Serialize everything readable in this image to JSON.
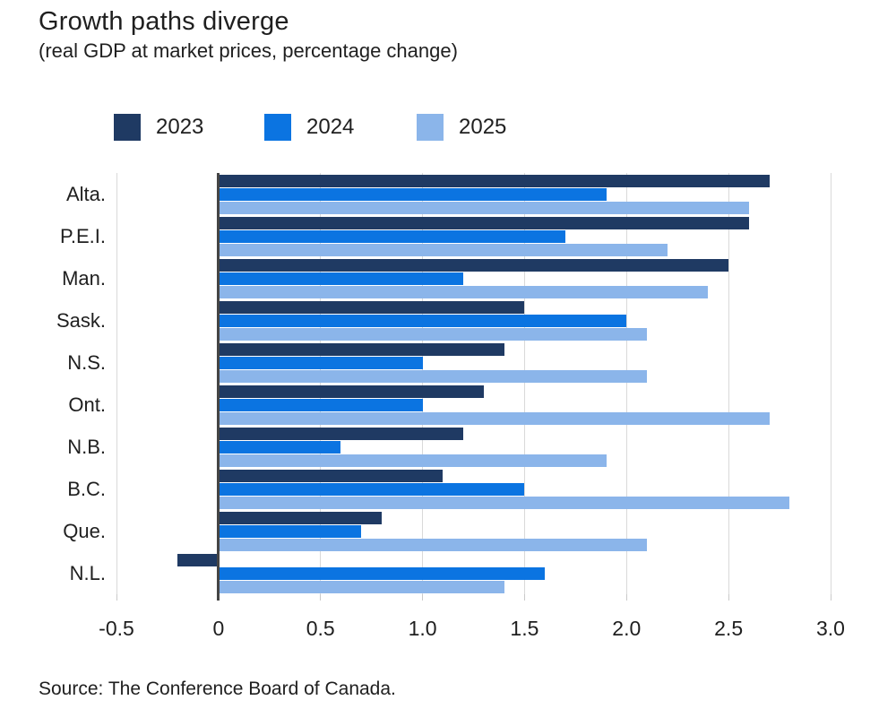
{
  "header": {
    "title": "Growth paths diverge",
    "subtitle": "(real GDP at market prices, percentage change)"
  },
  "footer": {
    "source": "Source: The Conference Board of Canada."
  },
  "colors": {
    "series_2023": "#1F3A63",
    "series_2024": "#0B74E1",
    "series_2025": "#8BB5EA",
    "gridline": "#D9D9D9",
    "zero_line": "#454545",
    "text": "#1F1F1F"
  },
  "chart_data": {
    "type": "bar",
    "orientation": "horizontal",
    "title": "Growth paths diverge",
    "subtitle": "(real GDP at market prices, percentage change)",
    "categories": [
      "Alta.",
      "P.E.I.",
      "Man.",
      "Sask.",
      "N.S.",
      "Ont.",
      "N.B.",
      "B.C.",
      "Que.",
      "N.L."
    ],
    "series": [
      {
        "name": "2023",
        "color": "#1F3A63",
        "values": [
          2.7,
          2.6,
          2.5,
          1.5,
          1.4,
          1.3,
          1.2,
          1.1,
          0.8,
          -0.2
        ]
      },
      {
        "name": "2024",
        "color": "#0B74E1",
        "values": [
          1.9,
          1.7,
          1.2,
          2.0,
          1.0,
          1.0,
          0.6,
          1.5,
          0.7,
          1.6
        ]
      },
      {
        "name": "2025",
        "color": "#8BB5EA",
        "values": [
          2.6,
          2.2,
          2.4,
          2.1,
          2.1,
          2.7,
          1.9,
          2.8,
          2.1,
          1.4
        ]
      }
    ],
    "xlim": [
      -0.5,
      3.0
    ],
    "x_ticks": [
      -0.5,
      0,
      0.5,
      1.0,
      1.5,
      2.0,
      2.5,
      3.0
    ],
    "x_tick_labels": [
      "-0.5",
      "0",
      "0.5",
      "1.0",
      "1.5",
      "2.0",
      "2.5",
      "3.0"
    ],
    "grid": true,
    "legend_position": "top",
    "zero_baseline": true
  }
}
